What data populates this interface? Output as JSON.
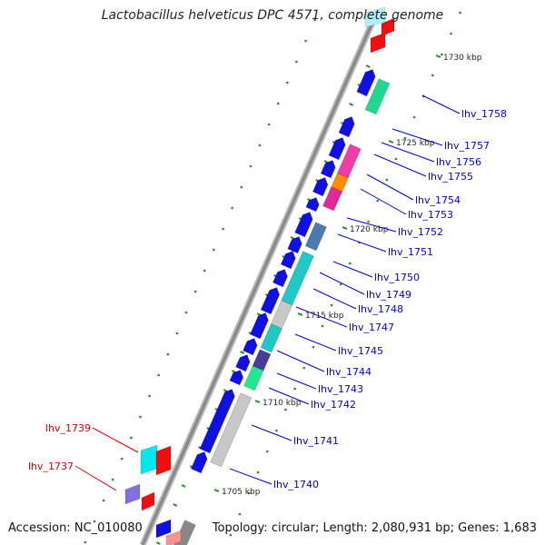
{
  "title": "Lactobacillus helveticus DPC 4571, complete genome",
  "footer": {
    "accession_label": "Accession:",
    "accession": "NC_010080",
    "topology_label": "Topology:",
    "topology": "circular",
    "length_label": "Length:",
    "length": "2,080,931 bp",
    "genes_label": "Genes:",
    "genes": "1,683"
  },
  "colors": {
    "forward_strand": "#0000ee",
    "backbone": "#888888",
    "tick": "#2a8a2a",
    "label_forward": "#0000cc",
    "label_reverse": "#dd0000",
    "ticklabel": "#222222"
  },
  "position_labels": [
    "1730 kbp",
    "1725 kbp",
    "1720 kbp",
    "1715 kbp",
    "1710 kbp",
    "1705 kbp"
  ],
  "gene_labels": [
    {
      "text": "lhv_1758",
      "strand": "forward"
    },
    {
      "text": "lhv_1757",
      "strand": "forward"
    },
    {
      "text": "lhv_1756",
      "strand": "forward"
    },
    {
      "text": "lhv_1755",
      "strand": "forward"
    },
    {
      "text": "lhv_1754",
      "strand": "forward"
    },
    {
      "text": "lhv_1753",
      "strand": "forward"
    },
    {
      "text": "lhv_1752",
      "strand": "forward"
    },
    {
      "text": "lhv_1751",
      "strand": "forward"
    },
    {
      "text": "lhv_1750",
      "strand": "forward"
    },
    {
      "text": "lhv_1749",
      "strand": "forward"
    },
    {
      "text": "lhv_1748",
      "strand": "forward"
    },
    {
      "text": "lhv_1747",
      "strand": "forward"
    },
    {
      "text": "lhv_1745",
      "strand": "forward"
    },
    {
      "text": "lhv_1744",
      "strand": "forward"
    },
    {
      "text": "lhv_1743",
      "strand": "forward"
    },
    {
      "text": "lhv_1742",
      "strand": "forward"
    },
    {
      "text": "lhv_1741",
      "strand": "forward"
    },
    {
      "text": "lhv_1740",
      "strand": "forward"
    },
    {
      "text": "lhv_1739",
      "strand": "reverse"
    },
    {
      "text": "lhv_1737",
      "strand": "reverse"
    }
  ]
}
